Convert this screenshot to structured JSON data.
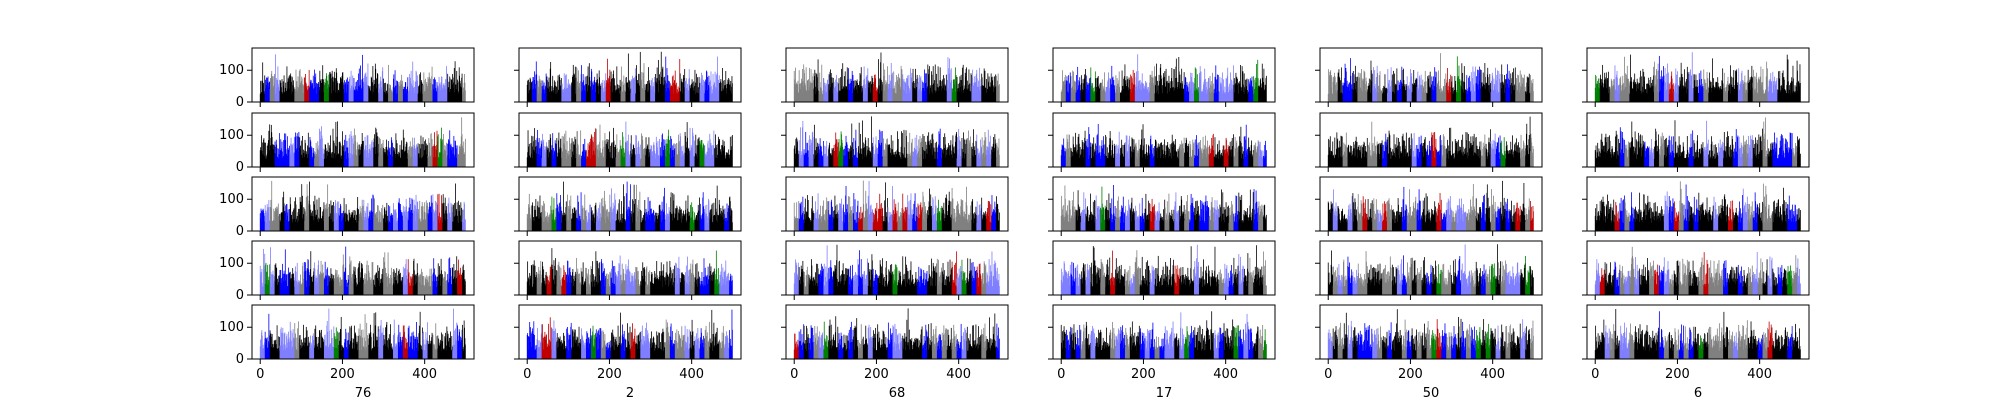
{
  "chart_data": {
    "type": "bar",
    "layout": {
      "rows": 5,
      "cols": 6
    },
    "x_range": [
      -20,
      520
    ],
    "y_range": [
      0,
      170
    ],
    "n_bars": 500,
    "x_ticks": [
      0,
      200,
      400
    ],
    "y_ticks": [
      0,
      100
    ],
    "bar_colors": [
      "#000000",
      "#808080",
      "#0000ff",
      "#7f7fff",
      "#c00000",
      "#008000"
    ],
    "grid": false,
    "legend": "none",
    "column_labels": [
      "76",
      "2",
      "68",
      "17",
      "50",
      "6"
    ],
    "value_distribution": {
      "typical_min": 25,
      "typical_max": 130,
      "peak_max": 160
    }
  }
}
